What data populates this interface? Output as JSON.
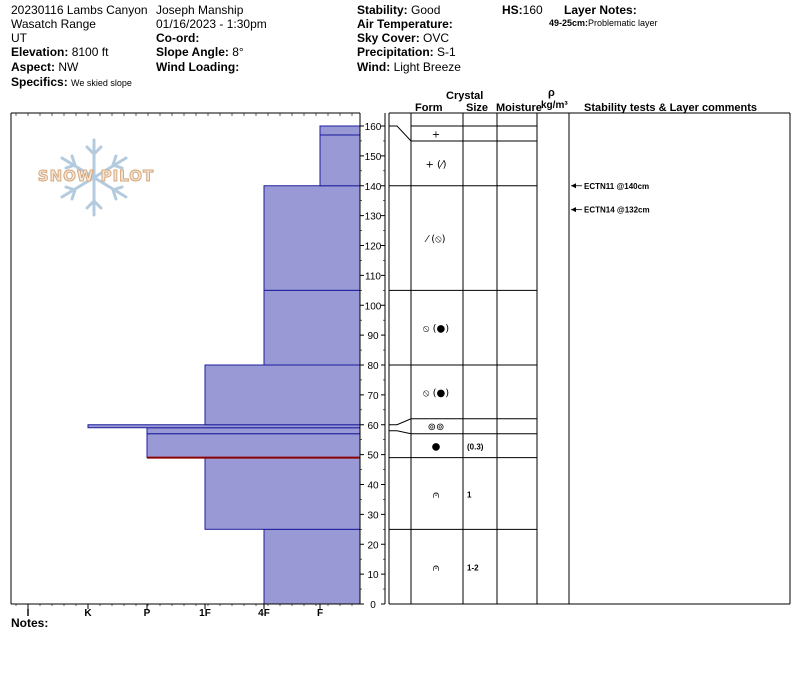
{
  "header": {
    "pit_id": "20230116 Lambs Canyon",
    "range": "Wasatch Range",
    "state": "UT",
    "observer": "Joseph Manship",
    "datetime": "01/16/2023 - 1:30pm",
    "elevation_label": "Elevation:",
    "elevation_value": "8100 ft",
    "aspect_label": "Aspect:",
    "aspect_value": "NW",
    "specifics_label": "Specifics:",
    "specifics_value": "We skied slope",
    "coord_label": "Co-ord:",
    "slope_label": "Slope Angle:",
    "slope_value": "8°",
    "wind_loading_label": "Wind Loading:",
    "stability_label": "Stability:",
    "stability_value": "Good",
    "hs_label": "HS:",
    "hs_value": "160",
    "air_temp_label": "Air Temperature:",
    "sky_label": "Sky Cover:",
    "sky_value": "OVC",
    "precip_label": "Precipitation:",
    "precip_value": "S-1",
    "wind_label": "Wind:",
    "wind_value": "Light Breeze",
    "layer_notes_label": "Layer Notes:",
    "layer_note_range": "49-25cm:",
    "layer_note_text": "Problematic layer"
  },
  "logo": {
    "text": "SNOW PILOT"
  },
  "columns": {
    "crystal": "Crystal",
    "form": "Form",
    "size": "Size",
    "moisture": "Moisture",
    "rho": "ρ",
    "density_unit": "kg/m³",
    "stability": "Stability tests & Layer comments"
  },
  "notes_label": "Notes:",
  "chart_data": {
    "type": "snow-profile",
    "height_axis": {
      "min": 0,
      "max": 160,
      "ticks": [
        0,
        10,
        20,
        30,
        40,
        50,
        60,
        70,
        80,
        90,
        100,
        110,
        120,
        130,
        140,
        150,
        160
      ]
    },
    "hardness_axis": [
      "I",
      "K",
      "P",
      "1F",
      "4F",
      "F"
    ],
    "hardness_profile": [
      {
        "bottom": 0,
        "top": 25,
        "hardness": "4F"
      },
      {
        "bottom": 25,
        "top": 49,
        "hardness": "1F"
      },
      {
        "bottom": 49,
        "top": 57,
        "hardness": "P"
      },
      {
        "bottom": 57,
        "top": 59,
        "hardness": "P"
      },
      {
        "bottom": 59,
        "top": 60,
        "hardness": "K"
      },
      {
        "bottom": 60,
        "top": 80,
        "hardness": "1F"
      },
      {
        "bottom": 80,
        "top": 105,
        "hardness": "4F"
      },
      {
        "bottom": 105,
        "top": 140,
        "hardness": "4F"
      },
      {
        "bottom": 140,
        "top": 157,
        "hardness": "F"
      },
      {
        "bottom": 157,
        "top": 160,
        "hardness": "F"
      }
    ],
    "problem_height": 49,
    "layers": [
      {
        "top": 160,
        "bottom": 155,
        "form": "+",
        "size": ""
      },
      {
        "top": 155,
        "bottom": 140,
        "form": "+ (⁄)",
        "size": ""
      },
      {
        "top": 140,
        "bottom": 105,
        "form": "⁄ (⦸)",
        "size": ""
      },
      {
        "top": 105,
        "bottom": 80,
        "form": "⦸ (●)",
        "size": ""
      },
      {
        "top": 80,
        "bottom": 62,
        "form": "⦸ (●)",
        "size": ""
      },
      {
        "top": 62,
        "bottom": 57,
        "form": "⊚⊚",
        "size": ""
      },
      {
        "top": 57,
        "bottom": 49,
        "form": "●",
        "size": "(0.3)"
      },
      {
        "top": 49,
        "bottom": 25,
        "form": "⩀",
        "size": "1"
      },
      {
        "top": 25,
        "bottom": 0,
        "form": "⩀",
        "size": "1-2"
      }
    ],
    "tests": [
      {
        "height": 140,
        "label": "ECTN11 @140cm"
      },
      {
        "height": 132,
        "label": "ECTN14 @132cm"
      }
    ]
  }
}
